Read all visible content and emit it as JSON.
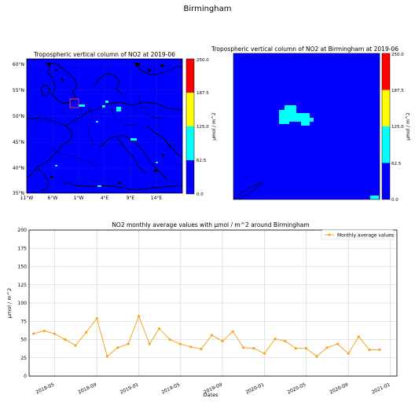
{
  "suptitle": "Birmingham",
  "map_left": {
    "title": "Tropospheric vertical column of NO2 at 2019-06",
    "lat_ticks": [
      "60°N",
      "55°N",
      "50°N",
      "45°N",
      "40°N",
      "35°N"
    ],
    "lon_ticks": [
      "11°W",
      "6°W",
      "1°W",
      "4°E",
      "9°E",
      "14°E"
    ],
    "colorbar": {
      "label": "μmol / m^2",
      "ticks": [
        "250.0",
        "187.5",
        "125.0",
        "62.5",
        "0.0"
      ],
      "colors": [
        "#ff0000",
        "#ffff00",
        "#00ffff",
        "#0000ff"
      ]
    }
  },
  "map_right": {
    "title": "Tropospheric vertical column of NO2 at Birmingham at 2019-06",
    "colorbar": {
      "label": "μmol / m^2",
      "ticks": [
        "250.0",
        "187.5",
        "125.0",
        "62.5",
        "0.0"
      ],
      "colors": [
        "#ff0000",
        "#ffff00",
        "#00ffff",
        "#0000ff"
      ]
    }
  },
  "chart_data": {
    "type": "line",
    "title": "NO2 monthly average values with μmol / m^2 around Birmingham",
    "xlabel": "Dates",
    "ylabel": "μmol / m^2",
    "ylim": [
      0,
      200
    ],
    "yticks": [
      0,
      25,
      50,
      75,
      100,
      125,
      150,
      175,
      200
    ],
    "xlim": [
      "2018-02-16",
      "2021-01-20"
    ],
    "xticks": [
      "2018-05",
      "2018-09",
      "2019-01",
      "2019-05",
      "2019-09",
      "2020-01",
      "2020-05",
      "2020-09",
      "2021-01"
    ],
    "grid": true,
    "legend": "top-right",
    "color": "#f5a623",
    "series": [
      {
        "name": "Monthly average values",
        "x": [
          "2018-03",
          "2018-04",
          "2018-05",
          "2018-06",
          "2018-07",
          "2018-08",
          "2018-09",
          "2018-10",
          "2018-11",
          "2018-12",
          "2019-01",
          "2019-02",
          "2019-03",
          "2019-04",
          "2019-05",
          "2019-06",
          "2019-07",
          "2019-08",
          "2019-09",
          "2019-10",
          "2019-11",
          "2019-12",
          "2020-01",
          "2020-02",
          "2020-03",
          "2020-04",
          "2020-05",
          "2020-06",
          "2020-07",
          "2020-08",
          "2020-09",
          "2020-10",
          "2020-11",
          "2020-12"
        ],
        "values": [
          58,
          62,
          58,
          50,
          42,
          60,
          79,
          27,
          39,
          44,
          82,
          44,
          65,
          50,
          44,
          40,
          37,
          56,
          48,
          61,
          39,
          38,
          31,
          51,
          48,
          38,
          38,
          27,
          39,
          44,
          31,
          54,
          36,
          36
        ]
      }
    ]
  }
}
